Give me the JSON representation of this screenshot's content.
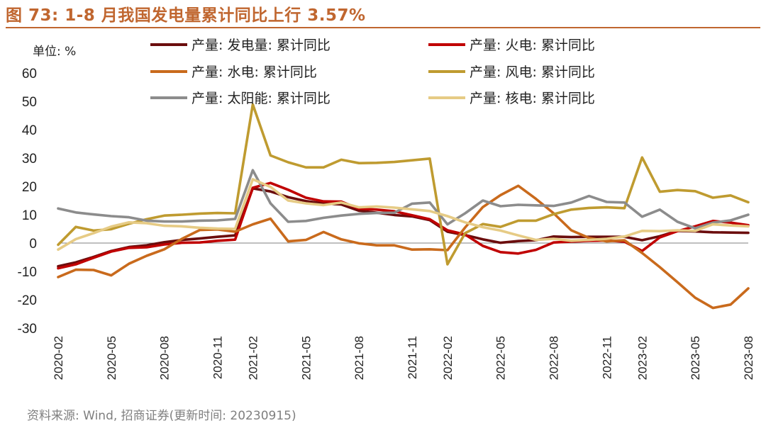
{
  "header": {
    "title": "图 73:  1-8 月我国发电量累计同比上行 3.57%",
    "unit_label": "单位:  %"
  },
  "footer": {
    "source": "资料来源:  Wind, 招商证券(更新时间:  20230915)"
  },
  "chart_data": {
    "type": "line",
    "x": [
      "2020-02",
      "2020-03",
      "2020-04",
      "2020-05",
      "2020-06",
      "2020-07",
      "2020-08",
      "2020-09",
      "2020-10",
      "2020-11",
      "2020-12",
      "2021-02",
      "2021-03",
      "2021-04",
      "2021-05",
      "2021-06",
      "2021-07",
      "2021-08",
      "2021-09",
      "2021-10",
      "2021-11",
      "2021-12",
      "2022-02",
      "2022-03",
      "2022-04",
      "2022-05",
      "2022-06",
      "2022-07",
      "2022-08",
      "2022-09",
      "2022-10",
      "2022-11",
      "2022-12",
      "2023-02",
      "2023-03",
      "2023-04",
      "2023-05",
      "2023-06",
      "2023-07",
      "2023-08"
    ],
    "x_tick_labels": [
      "2020-02",
      "2020-05",
      "2020-08",
      "2020-11",
      "2021-02",
      "2021-05",
      "2021-08",
      "2021-11",
      "2022-02",
      "2022-05",
      "2022-08",
      "2022-11",
      "2023-02",
      "2023-05",
      "2023-08"
    ],
    "ylim": [
      -30,
      60
    ],
    "y_ticks": [
      -30,
      -20,
      -10,
      0,
      10,
      20,
      30,
      40,
      50,
      60
    ],
    "legend_position": "top",
    "series": [
      {
        "name": "产量: 发电量: 累计同比",
        "color": "#6b0d0d",
        "values": [
          -8.2,
          -6.8,
          -4.9,
          -2.8,
          -1.4,
          -0.8,
          0.3,
          1.1,
          1.6,
          2.2,
          2.7,
          19.3,
          18.2,
          16.2,
          14.8,
          14.0,
          13.6,
          11.4,
          10.7,
          9.9,
          9.4,
          8.1,
          4.0,
          2.8,
          1.3,
          0.1,
          0.7,
          1.0,
          2.3,
          2.1,
          2.2,
          2.2,
          2.2,
          1.0,
          2.4,
          4.3,
          4.1,
          3.8,
          3.7,
          3.6
        ]
      },
      {
        "name": "产量: 火电: 累计同比",
        "color": "#c00000",
        "values": [
          -8.9,
          -7.5,
          -5.2,
          -3.0,
          -1.7,
          -1.5,
          -0.5,
          0.1,
          0.2,
          0.8,
          1.2,
          19.5,
          21.2,
          18.8,
          16.0,
          14.7,
          14.6,
          12.1,
          11.8,
          11.2,
          9.8,
          8.4,
          4.5,
          3.0,
          -1.0,
          -3.2,
          -3.7,
          -2.4,
          0.2,
          0.5,
          0.8,
          0.9,
          0.5,
          -2.8,
          2.0,
          4.2,
          5.9,
          7.8,
          7.2,
          6.3
        ]
      },
      {
        "name": "产量: 水电: 累计同比",
        "color": "#c96a1c",
        "values": [
          -12.0,
          -9.4,
          -9.5,
          -11.4,
          -7.3,
          -4.5,
          -2.2,
          1.5,
          4.6,
          4.8,
          4.0,
          6.6,
          8.6,
          0.6,
          1.1,
          3.9,
          1.3,
          -0.1,
          -0.8,
          -0.8,
          -2.3,
          -2.2,
          -2.5,
          5.5,
          12.7,
          16.9,
          20.2,
          15.6,
          10.5,
          4.5,
          1.8,
          0.6,
          1.0,
          -3.5,
          -8.5,
          -13.8,
          -19.3,
          -22.9,
          -21.7,
          -16.0
        ]
      },
      {
        "name": "产量: 风电: 累计同比",
        "color": "#bf9b30",
        "values": [
          -0.6,
          5.7,
          4.4,
          4.9,
          6.8,
          8.4,
          9.7,
          10.0,
          10.4,
          10.6,
          10.5,
          48.9,
          30.9,
          28.5,
          26.7,
          26.7,
          29.4,
          28.2,
          28.3,
          28.6,
          29.2,
          29.8,
          -7.5,
          3.5,
          6.7,
          5.7,
          7.9,
          7.9,
          10.2,
          11.8,
          12.4,
          12.6,
          12.3,
          30.2,
          18.1,
          18.7,
          18.3,
          16.0,
          16.8,
          14.4
        ]
      },
      {
        "name": "产量: 太阳能: 累计同比",
        "color": "#8c8c8c",
        "values": [
          12.2,
          10.8,
          10.1,
          9.5,
          9.1,
          7.9,
          7.6,
          7.6,
          7.9,
          8.0,
          8.5,
          25.7,
          14.0,
          7.5,
          7.8,
          8.9,
          9.7,
          10.3,
          10.6,
          10.7,
          13.9,
          14.3,
          6.6,
          10.5,
          15.0,
          13.0,
          13.5,
          13.3,
          13.1,
          14.3,
          16.6,
          14.5,
          14.3,
          9.3,
          11.8,
          7.5,
          5.2,
          7.2,
          8.0,
          10.0
        ]
      },
      {
        "name": "产量: 核电: 累计同比",
        "color": "#e6cb85",
        "values": [
          -2.3,
          1.4,
          3.5,
          5.8,
          7.3,
          7.0,
          6.1,
          5.9,
          5.4,
          5.1,
          5.0,
          22.5,
          19.8,
          15.0,
          14.0,
          13.4,
          14.3,
          12.6,
          12.9,
          12.5,
          11.9,
          11.3,
          9.5,
          7.3,
          5.6,
          4.4,
          2.7,
          1.1,
          1.5,
          0.8,
          1.1,
          1.5,
          2.3,
          4.3,
          4.2,
          4.5,
          4.3,
          6.6,
          6.2,
          5.9
        ]
      }
    ]
  }
}
